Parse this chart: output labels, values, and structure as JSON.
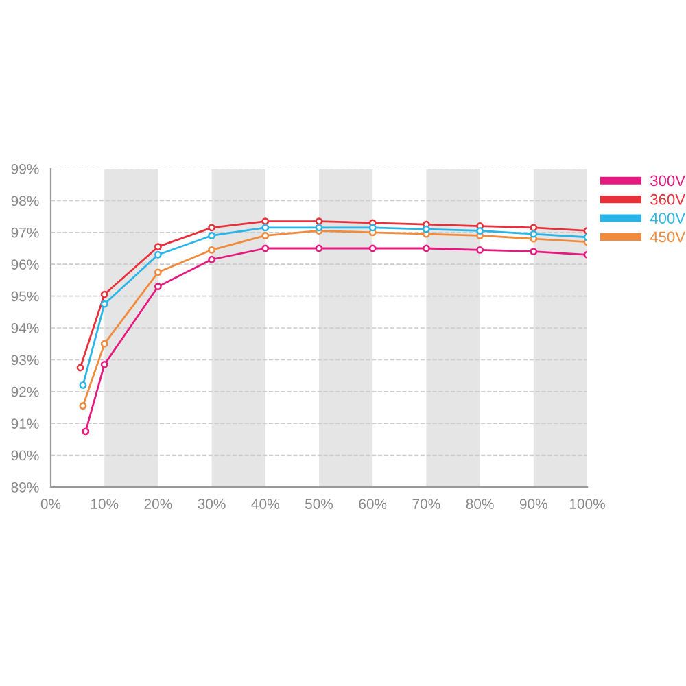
{
  "chart_data": {
    "type": "line",
    "series": [
      {
        "name": "300V",
        "color": "#e6197f",
        "x": [
          6.5,
          10,
          20,
          30,
          40,
          50,
          60,
          70,
          80,
          90,
          100
        ],
        "values": [
          90.75,
          92.85,
          95.3,
          96.15,
          96.5,
          96.5,
          96.5,
          96.5,
          96.45,
          96.4,
          96.3
        ]
      },
      {
        "name": "360V",
        "color": "#e8303a",
        "x": [
          5.5,
          10,
          20,
          30,
          40,
          50,
          60,
          70,
          80,
          90,
          100
        ],
        "values": [
          92.75,
          95.05,
          96.55,
          97.15,
          97.35,
          97.35,
          97.3,
          97.25,
          97.2,
          97.15,
          97.05
        ]
      },
      {
        "name": "400V",
        "color": "#29b5e8",
        "x": [
          6,
          10,
          20,
          30,
          40,
          50,
          60,
          70,
          80,
          90,
          100
        ],
        "values": [
          92.2,
          94.75,
          96.3,
          96.9,
          97.15,
          97.15,
          97.15,
          97.1,
          97.05,
          96.95,
          96.85
        ]
      },
      {
        "name": "450V",
        "color": "#f08a3c",
        "x": [
          6,
          10,
          20,
          30,
          40,
          50,
          60,
          70,
          80,
          90,
          100
        ],
        "values": [
          91.55,
          93.5,
          95.75,
          96.45,
          96.9,
          97.05,
          97.0,
          96.95,
          96.9,
          96.8,
          96.7
        ]
      }
    ],
    "xlim": [
      0,
      100
    ],
    "xticks": [
      {
        "value": 0,
        "label": "0%"
      },
      {
        "value": 10,
        "label": "10%"
      },
      {
        "value": 20,
        "label": "20%"
      },
      {
        "value": 30,
        "label": "30%"
      },
      {
        "value": 40,
        "label": "40%"
      },
      {
        "value": 50,
        "label": "50%"
      },
      {
        "value": 60,
        "label": "60%"
      },
      {
        "value": 70,
        "label": "70%"
      },
      {
        "value": 80,
        "label": "80%"
      },
      {
        "value": 90,
        "label": "90%"
      },
      {
        "value": 100,
        "label": "100%"
      }
    ],
    "ylim": [
      89,
      99
    ],
    "yticks": [
      {
        "value": 89,
        "label": "89%"
      },
      {
        "value": 90,
        "label": "90%"
      },
      {
        "value": 91,
        "label": "91%"
      },
      {
        "value": 92,
        "label": "92%"
      },
      {
        "value": 93,
        "label": "93%"
      },
      {
        "value": 94,
        "label": "94%"
      },
      {
        "value": 95,
        "label": "95%"
      },
      {
        "value": 96,
        "label": "96%"
      },
      {
        "value": 97,
        "label": "97%"
      },
      {
        "value": 98,
        "label": "98%"
      },
      {
        "value": 99,
        "label": "99%"
      }
    ],
    "bands": [
      {
        "axis": "x",
        "from": 10,
        "to": 20,
        "color": "#e5e5e5"
      },
      {
        "axis": "x",
        "from": 30,
        "to": 40,
        "color": "#e5e5e5"
      },
      {
        "axis": "x",
        "from": 50,
        "to": 60,
        "color": "#e5e5e5"
      },
      {
        "axis": "x",
        "from": 70,
        "to": 80,
        "color": "#e5e5e5"
      },
      {
        "axis": "x",
        "from": 90,
        "to": 100,
        "color": "#e5e5e5"
      }
    ],
    "grid": "y",
    "legend": "top right",
    "marker": "circle",
    "line_style": "solid"
  }
}
